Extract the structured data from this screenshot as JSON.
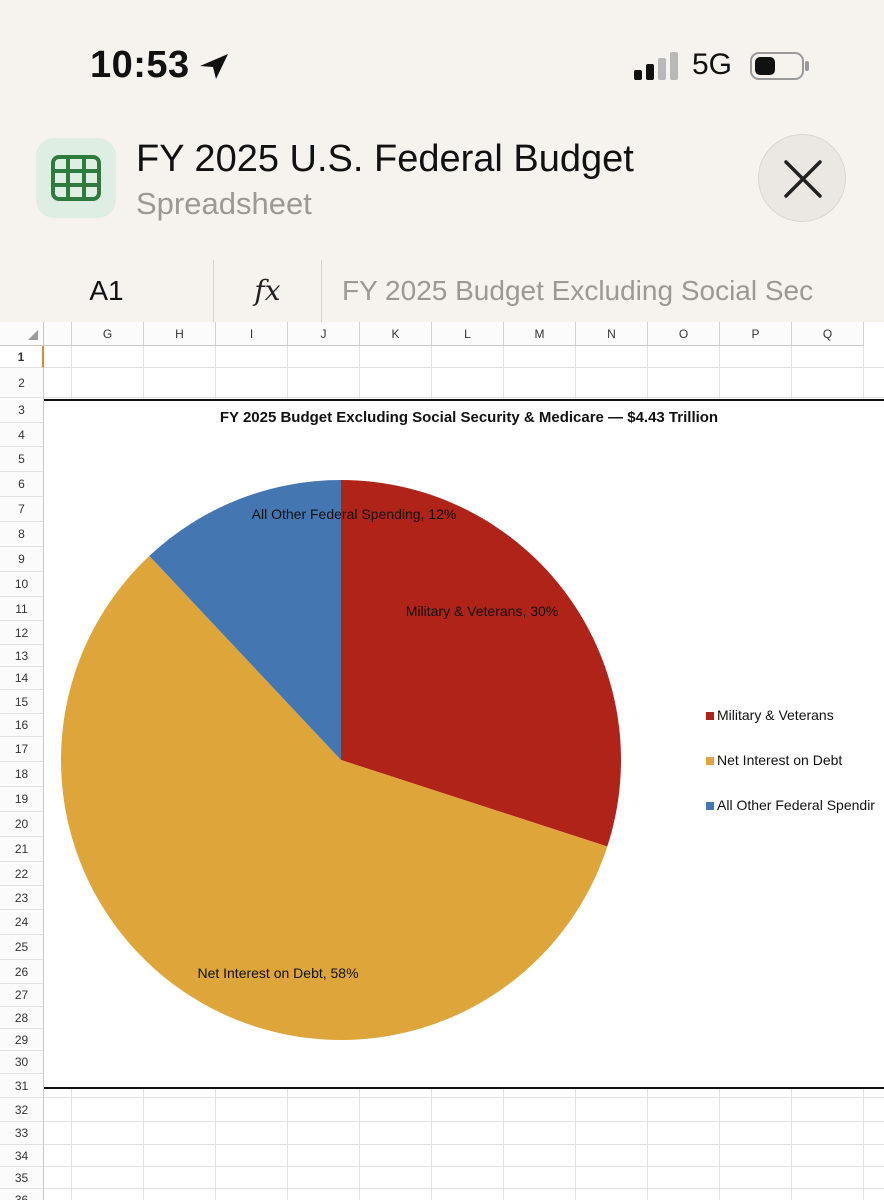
{
  "status_bar": {
    "time": "10:53",
    "network": "5G"
  },
  "app": {
    "title": "FY 2025 U.S. Federal Budget",
    "subtitle": "Spreadsheet",
    "icon": "spreadsheet-grid-icon"
  },
  "formula_bar": {
    "cell_ref": "A1",
    "fx_label": "fx",
    "formula": "FY 2025 Budget Excluding Social Sec"
  },
  "columns": [
    "G",
    "H",
    "I",
    "J",
    "K",
    "L",
    "M",
    "N",
    "O",
    "P",
    "Q"
  ],
  "rows": [
    "1",
    "2",
    "3",
    "4",
    "5",
    "6",
    "7",
    "8",
    "9",
    "10",
    "11",
    "12",
    "13",
    "14",
    "15",
    "16",
    "17",
    "18",
    "19",
    "20",
    "21",
    "22",
    "23",
    "24",
    "25",
    "26",
    "27",
    "28",
    "29",
    "30",
    "31",
    "32",
    "33",
    "34",
    "35",
    "36"
  ],
  "selected_row": "1",
  "chart_data": {
    "type": "pie",
    "title": "FY 2025 Budget Excluding Social Security & Medicare — $4.43 Trillion",
    "slices": [
      {
        "name": "Military & Veterans",
        "value": 30,
        "label": "Military & Veterans, 30%",
        "color": "#b02318"
      },
      {
        "name": "Net Interest on Debt",
        "value": 58,
        "label": "Net Interest on Debt, 58%",
        "color": "#dea63a"
      },
      {
        "name": "All Other Federal Spending",
        "value": 12,
        "label": "All Other Federal Spending, 12%",
        "color": "#4476b1"
      }
    ],
    "legend_labels": [
      "Military & Veterans",
      "Net Interest on Debt",
      "All Other Federal Spendir"
    ],
    "legend_position": "right"
  }
}
